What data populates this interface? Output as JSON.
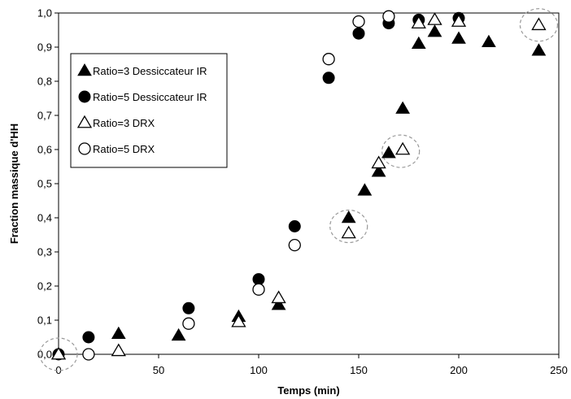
{
  "chart_data": {
    "type": "scatter",
    "xlabel": "Temps (min)",
    "ylabel": "Fraction massique d'HH",
    "xlim": [
      0,
      250
    ],
    "ylim": [
      0,
      1
    ],
    "x_ticks": [
      "0",
      "50",
      "100",
      "150",
      "200",
      "250"
    ],
    "y_ticks": [
      "0,0",
      "0,1",
      "0,2",
      "0,3",
      "0,4",
      "0,5",
      "0,6",
      "0,7",
      "0,8",
      "0,9",
      "1,0"
    ],
    "grid": false,
    "legend_position": "upper-left",
    "series": [
      {
        "name": "Ratio=3 Dessiccateur IR",
        "marker": "triangle-filled",
        "points": [
          [
            0,
            0.0
          ],
          [
            30,
            0.06
          ],
          [
            60,
            0.055
          ],
          [
            90,
            0.11
          ],
          [
            110,
            0.145
          ],
          [
            145,
            0.4
          ],
          [
            153,
            0.48
          ],
          [
            160,
            0.535
          ],
          [
            165,
            0.59
          ],
          [
            172,
            0.72
          ],
          [
            180,
            0.91
          ],
          [
            188,
            0.945
          ],
          [
            200,
            0.925
          ],
          [
            215,
            0.915
          ],
          [
            240,
            0.89
          ]
        ]
      },
      {
        "name": "Ratio=5 Dessiccateur IR",
        "marker": "circle-filled",
        "points": [
          [
            0,
            0.0
          ],
          [
            15,
            0.05
          ],
          [
            65,
            0.135
          ],
          [
            100,
            0.22
          ],
          [
            118,
            0.375
          ],
          [
            135,
            0.81
          ],
          [
            150,
            0.94
          ],
          [
            165,
            0.97
          ],
          [
            180,
            0.98
          ],
          [
            200,
            0.985
          ]
        ]
      },
      {
        "name": "Ratio=3 DRX",
        "marker": "triangle-open",
        "points": [
          [
            0,
            0.0
          ],
          [
            30,
            0.01
          ],
          [
            90,
            0.095
          ],
          [
            110,
            0.165
          ],
          [
            145,
            0.355
          ],
          [
            160,
            0.56
          ],
          [
            172,
            0.6
          ],
          [
            180,
            0.97
          ],
          [
            188,
            0.98
          ],
          [
            200,
            0.975
          ],
          [
            240,
            0.965
          ]
        ]
      },
      {
        "name": "Ratio=5 DRX",
        "marker": "circle-open",
        "points": [
          [
            15,
            0.0
          ],
          [
            65,
            0.09
          ],
          [
            100,
            0.19
          ],
          [
            118,
            0.32
          ],
          [
            135,
            0.865
          ],
          [
            150,
            0.975
          ],
          [
            165,
            0.99
          ]
        ]
      }
    ],
    "highlight_circles": [
      {
        "x": 0,
        "y": 0.0
      },
      {
        "x": 145,
        "y": 0.375
      },
      {
        "x": 171,
        "y": 0.595
      },
      {
        "x": 240,
        "y": 0.965
      }
    ]
  }
}
